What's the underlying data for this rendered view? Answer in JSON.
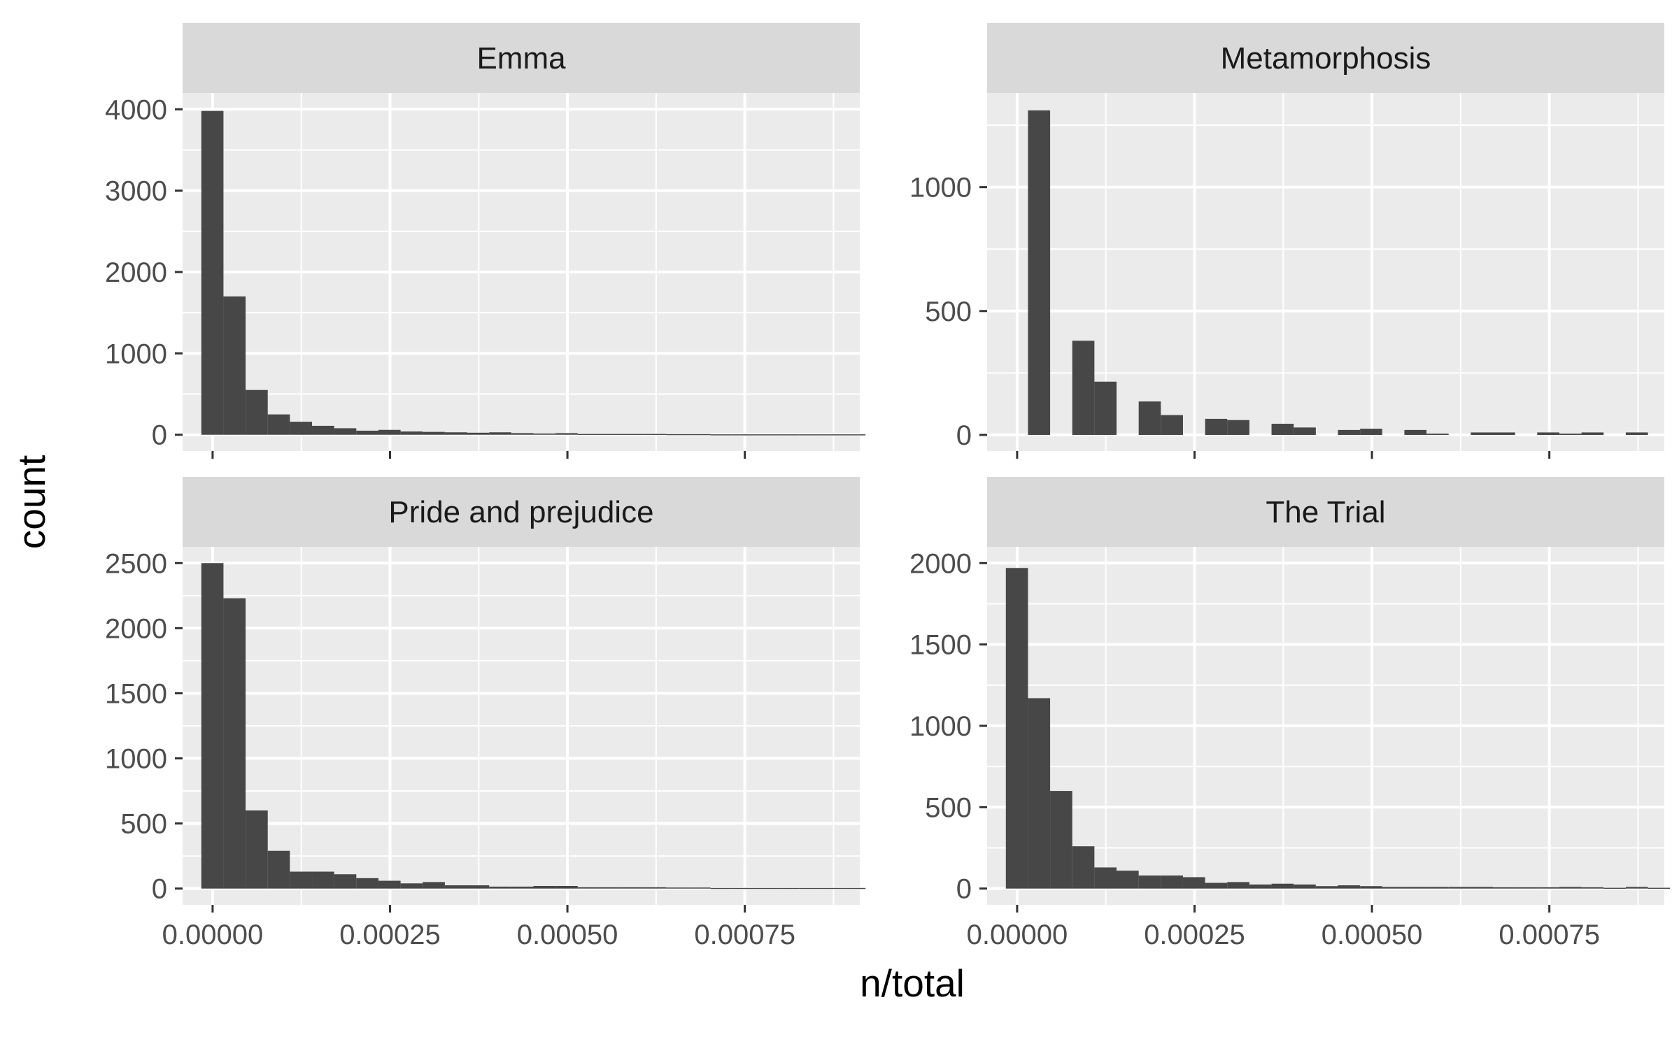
{
  "chart_data": {
    "type": "histogram",
    "facet_layout": "2x2",
    "xlabel": "n/total",
    "ylabel": "count",
    "x_domain": [
      -4.23e-05,
      0.000912
    ],
    "bin_start": -1.59e-05,
    "bin_width": 3.12e-05,
    "x_ticks": [
      {
        "value": 0,
        "label": "0.00000"
      },
      {
        "value": 0.00025,
        "label": "0.00025"
      },
      {
        "value": 0.0005,
        "label": "0.00050"
      },
      {
        "value": 0.00075,
        "label": "0.00075"
      }
    ],
    "x_tick_rows": [
      "bottom"
    ],
    "colors": {
      "bar": "#474747",
      "panel": "#ebebeb",
      "grid": "#ffffff",
      "strip": "#d9d9d9",
      "text": "#4d4d4d"
    },
    "panels": [
      {
        "title": "Emma",
        "ylim": [
          0,
          4000
        ],
        "y_ticks": [
          0,
          1000,
          2000,
          3000,
          4000
        ],
        "y_domain": [
          -200,
          4200
        ],
        "counts": [
          3980,
          1700,
          550,
          250,
          160,
          110,
          80,
          50,
          60,
          40,
          35,
          30,
          25,
          30,
          20,
          15,
          20,
          10,
          10,
          10,
          10,
          8,
          8,
          5,
          5,
          5,
          5,
          5,
          5,
          5
        ]
      },
      {
        "title": "Metamorphosis",
        "ylim": [
          0,
          1300
        ],
        "y_ticks": [
          0,
          500,
          1000
        ],
        "y_domain": [
          -65,
          1380
        ],
        "counts": [
          0,
          1310,
          0,
          380,
          215,
          0,
          135,
          80,
          0,
          65,
          60,
          0,
          45,
          30,
          0,
          20,
          25,
          0,
          20,
          5,
          0,
          10,
          10,
          0,
          10,
          5,
          10,
          0,
          10,
          0
        ]
      },
      {
        "title": "Pride and prejudice",
        "ylim": [
          0,
          2500
        ],
        "y_ticks": [
          0,
          500,
          1000,
          1500,
          2000,
          2500
        ],
        "y_domain": [
          -125,
          2625
        ],
        "counts": [
          2500,
          2230,
          600,
          290,
          130,
          130,
          110,
          80,
          60,
          40,
          50,
          25,
          25,
          15,
          15,
          20,
          20,
          10,
          10,
          10,
          10,
          8,
          8,
          5,
          5,
          5,
          5,
          5,
          5,
          5
        ]
      },
      {
        "title": "The Trial",
        "ylim": [
          0,
          2000
        ],
        "y_ticks": [
          0,
          500,
          1000,
          1500,
          2000
        ],
        "y_domain": [
          -100,
          2100
        ],
        "counts": [
          1970,
          1170,
          600,
          260,
          130,
          110,
          80,
          80,
          70,
          35,
          40,
          25,
          30,
          25,
          15,
          20,
          15,
          10,
          10,
          10,
          10,
          10,
          8,
          8,
          8,
          10,
          8,
          5,
          10,
          5
        ]
      }
    ]
  }
}
